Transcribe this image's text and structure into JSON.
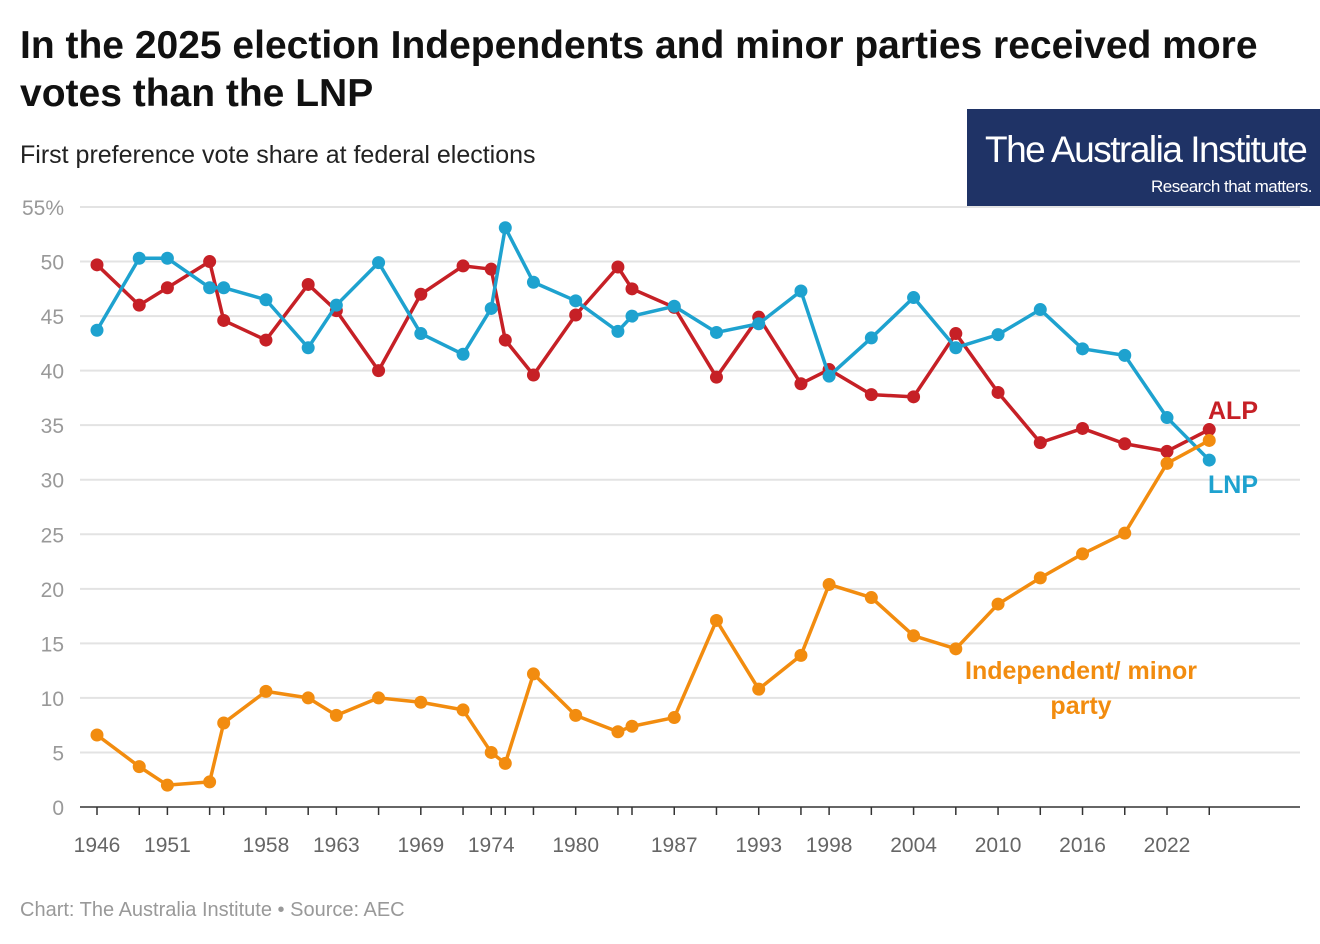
{
  "title": "In the 2025 election Independents and minor parties received more votes than the LNP",
  "subtitle": "First preference vote share at federal elections",
  "logo": {
    "name": "The Australia Institute",
    "tagline": "Research that matters.",
    "bg": "#1f3366"
  },
  "footer": {
    "chart_credit": "Chart: The Australia Institute",
    "source": "• Source: AEC"
  },
  "chart_data": {
    "type": "line",
    "title": "In the 2025 election Independents and minor parties received more votes than the LNP",
    "subtitle": "First preference vote share at federal elections",
    "x": [
      1946,
      1949,
      1951,
      1954,
      1955,
      1958,
      1961,
      1963,
      1966,
      1969,
      1972,
      1974,
      1975,
      1977,
      1980,
      1983,
      1984,
      1987,
      1990,
      1993,
      1996,
      1998,
      2001,
      2004,
      2007,
      2010,
      2013,
      2016,
      2019,
      2022,
      2025
    ],
    "x_tick_labels": [
      "1946",
      "1951",
      "1958",
      "1963",
      "1969",
      "1974",
      "1980",
      "1987",
      "1993",
      "1998",
      "2004",
      "2010",
      "2016",
      "2022"
    ],
    "y_tick_labels": [
      "0",
      "5",
      "10",
      "15",
      "20",
      "25",
      "30",
      "35",
      "40",
      "45",
      "50",
      "55%"
    ],
    "ylim": [
      0,
      55
    ],
    "xlim": [
      1946,
      2030
    ],
    "grid": true,
    "legend": "direct labels at line ends",
    "series": [
      {
        "name": "ALP",
        "color": "#c62026",
        "values": [
          49.7,
          46.0,
          47.6,
          50.0,
          44.6,
          42.8,
          47.9,
          45.5,
          40.0,
          47.0,
          49.6,
          49.3,
          42.8,
          39.6,
          45.1,
          49.5,
          47.5,
          45.8,
          39.4,
          44.9,
          38.8,
          40.1,
          37.8,
          37.6,
          43.4,
          38.0,
          33.4,
          34.7,
          33.3,
          32.6,
          34.6
        ]
      },
      {
        "name": "LNP",
        "color": "#1ea2cf",
        "values": [
          43.7,
          50.3,
          50.3,
          47.6,
          47.6,
          46.5,
          42.1,
          46.0,
          49.9,
          43.4,
          41.5,
          45.7,
          53.1,
          48.1,
          46.4,
          43.6,
          45.0,
          45.9,
          43.5,
          44.3,
          47.3,
          39.5,
          43.0,
          46.7,
          42.1,
          43.3,
          45.6,
          42.0,
          41.4,
          35.7,
          31.8
        ]
      },
      {
        "name": "Independent/ minor party",
        "label_lines": [
          "Independent/ minor",
          "party"
        ],
        "color": "#f28c0f",
        "values": [
          6.6,
          3.7,
          2.0,
          2.3,
          7.7,
          10.6,
          10.0,
          8.4,
          10.0,
          9.6,
          8.9,
          5.0,
          4.0,
          12.2,
          8.4,
          6.9,
          7.4,
          8.2,
          17.1,
          10.8,
          13.9,
          20.4,
          19.2,
          15.7,
          14.5,
          18.6,
          21.0,
          23.2,
          25.1,
          31.5,
          33.6
        ]
      }
    ]
  }
}
